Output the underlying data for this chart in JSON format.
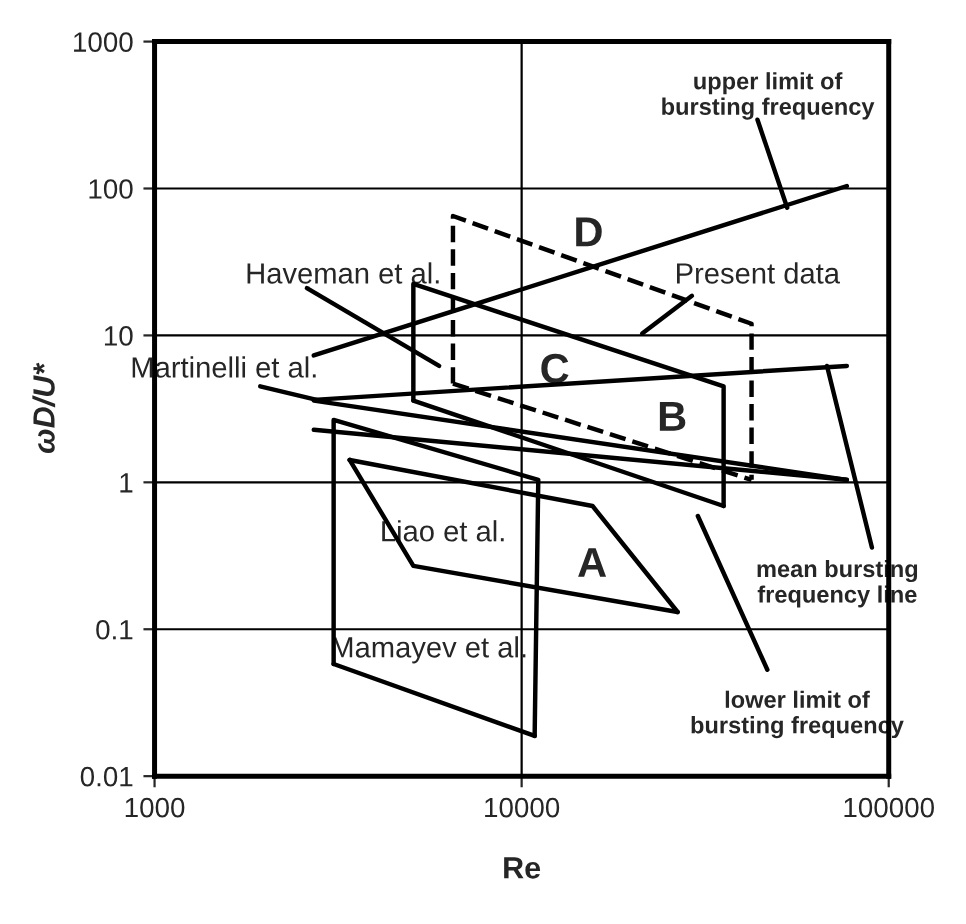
{
  "chart_data": {
    "type": "line",
    "xlabel": "Re",
    "ylabel": "ωD/U*",
    "log": "xy",
    "grid": true,
    "marker": "none",
    "xlim": [
      1000,
      100000
    ],
    "xticks": [
      1000,
      10000,
      100000
    ],
    "ylim": [
      0.01,
      1000
    ],
    "yticks": [
      0.01,
      0.1,
      1,
      10,
      100,
      1000
    ],
    "series": [
      {
        "color": "#000000",
        "line_style": "dashed",
        "x": [
          6500,
          6500,
          42300,
          42300
        ],
        "values": [
          4.7,
          65,
          12,
          1.04
        ]
      },
      {
        "color": "#000000",
        "line_style": "dashed",
        "x": [
          6500,
          42300
        ],
        "values": [
          4.7,
          1.04
        ]
      },
      {
        "color": "#000000",
        "x": [
          5070,
          5070,
          35500,
          35500
        ],
        "values": [
          3.6,
          22.4,
          4.5,
          0.69
        ]
      },
      {
        "color": "#000000",
        "x": [
          5070,
          35500
        ],
        "values": [
          3.6,
          0.69
        ]
      },
      {
        "color": "#000000",
        "x": [
          3400,
          15600,
          26600
        ],
        "values": [
          1.42,
          0.69,
          0.131
        ]
      },
      {
        "color": "#000000",
        "x": [
          3400,
          5070,
          26600
        ],
        "values": [
          1.42,
          0.27,
          0.131
        ]
      },
      {
        "color": "#000000",
        "x": [
          3075,
          3075,
          11100,
          10850
        ],
        "values": [
          0.058,
          2.66,
          1.04,
          0.0188
        ]
      },
      {
        "color": "#000000",
        "x": [
          3075,
          10850
        ],
        "values": [
          0.058,
          0.0188
        ]
      },
      {
        "color": "#000000",
        "x": [
          2715,
          76900
        ],
        "values": [
          7.3,
          104
        ]
      },
      {
        "color": "#000000",
        "x": [
          2715,
          76900
        ],
        "values": [
          3.64,
          6.2
        ]
      },
      {
        "color": "#000000",
        "x": [
          2715,
          76900
        ],
        "values": [
          3.6,
          1.04
        ]
      },
      {
        "color": "#000000",
        "x": [
          2715,
          76900
        ],
        "values": [
          2.28,
          1.04
        ]
      },
      {
        "color": "#000000",
        "x": [
          2600,
          5960
        ],
        "values": [
          21,
          6.2
        ]
      },
      {
        "color": "#000000",
        "x": [
          29100,
          21300
        ],
        "values": [
          18.6,
          10.3
        ]
      },
      {
        "color": "#000000",
        "x": [
          1940,
          2820
        ],
        "values": [
          4.5,
          3.6
        ]
      },
      {
        "color": "#000000",
        "x": [
          43900,
          52900
        ],
        "values": [
          294,
          74
        ]
      },
      {
        "color": "#000000",
        "x": [
          67900,
          90000
        ],
        "values": [
          6.2,
          0.36
        ]
      },
      {
        "color": "#000000",
        "x": [
          46700,
          30200
        ],
        "values": [
          0.053,
          0.59
        ]
      }
    ],
    "annotations": [
      "upper limit of\nbursting frequency",
      "Haveman et al.",
      "Present data",
      "Martinelli et al.",
      "D",
      "C",
      "B",
      "A",
      "Liao et al.",
      "Mamayev et al.",
      "mean bursting\nfrequency line",
      "lower limit of\nbursting frequency"
    ]
  }
}
